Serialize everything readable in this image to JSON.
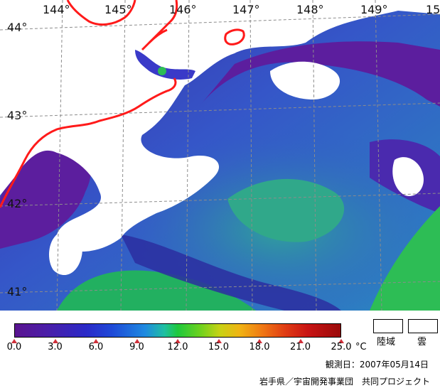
{
  "map": {
    "longitude_labels": [
      "144°",
      "145°",
      "146°",
      "147°",
      "148°",
      "149°",
      "15"
    ],
    "latitude_labels": [
      "44°",
      "43°",
      "42°",
      "41°"
    ],
    "colors": {
      "land_border": "#ff1a1a",
      "graticule": "#8c8c8c",
      "land_cloud": "#ffffff",
      "sst_cold": "#5a1ea0",
      "sst_mid": "#3c46c8",
      "sst_warm": "#28b45a"
    }
  },
  "legend": {
    "tick_labels": [
      "0.0",
      "3.0",
      "6.0",
      "9.0",
      "12.0",
      "15.0",
      "18.0",
      "21.0",
      "25.0"
    ],
    "unit": "°C",
    "scale_min": 0.0,
    "scale_max": 25.0,
    "land_label": "陸域",
    "cloud_label": "雲"
  },
  "observation_date": "観測日：2007年05月14日",
  "credit": "岩手県／宇宙開発事業団　共同プロジェクト"
}
